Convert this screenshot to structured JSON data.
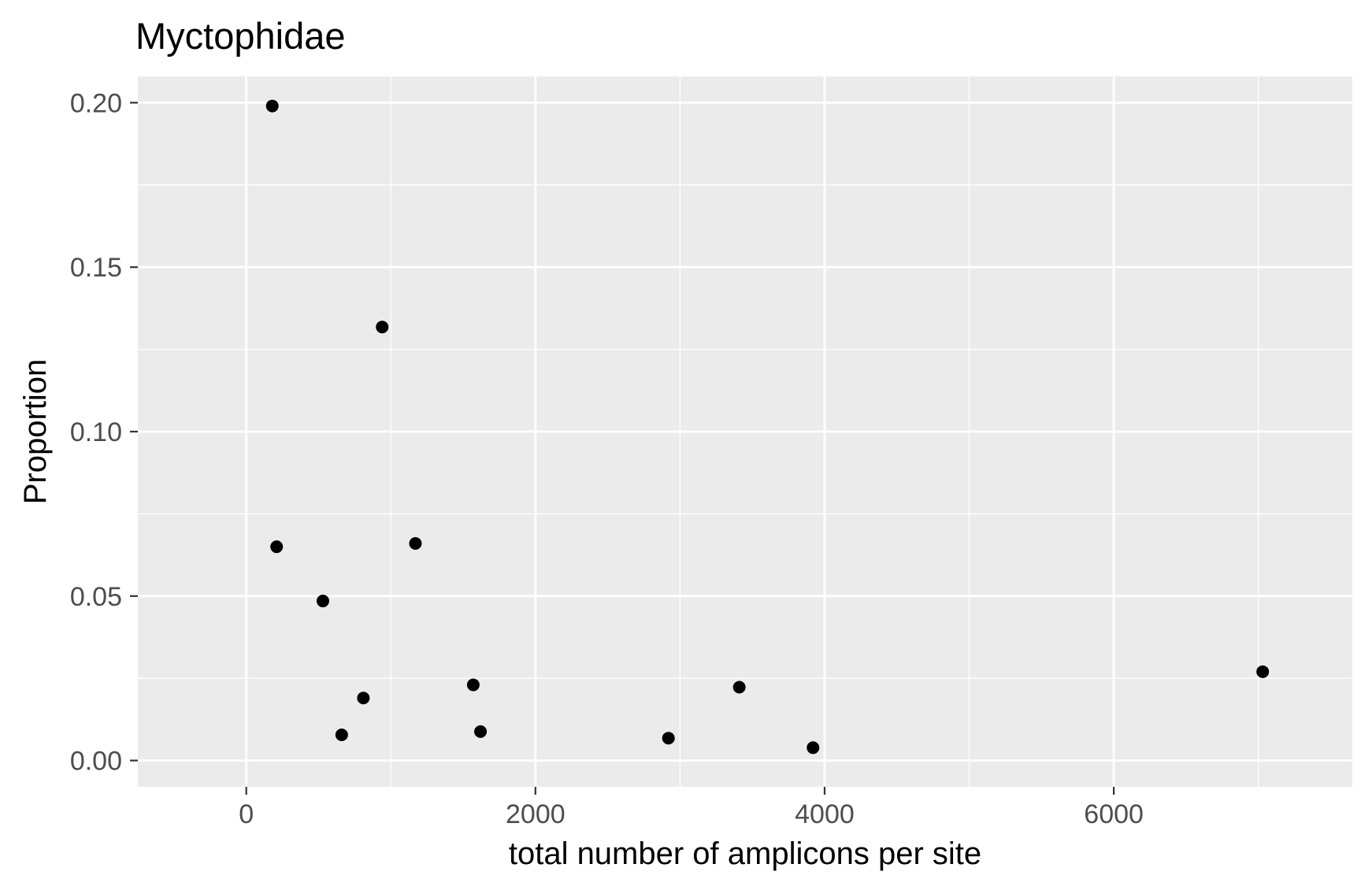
{
  "chart_data": {
    "type": "scatter",
    "title": "Myctophidae",
    "xlabel": "total number of amplicons per site",
    "ylabel": "Proportion",
    "xlim": [
      -750,
      7650
    ],
    "ylim": [
      -0.008,
      0.208
    ],
    "x_ticks": [
      0,
      2000,
      4000,
      6000
    ],
    "x_tick_labels": [
      "0",
      "2000",
      "4000",
      "6000"
    ],
    "y_ticks": [
      0,
      0.05,
      0.1,
      0.15,
      0.2
    ],
    "y_tick_labels": [
      "0.00",
      "0.05",
      "0.10",
      "0.15",
      "0.20"
    ],
    "grid": true,
    "legend": "none",
    "colors": {
      "panel_background": "#ebebeb",
      "grid": "#ffffff",
      "point": "#000000",
      "axis_text": "#4d4d4d",
      "tick": "#333333",
      "title": "#000000"
    },
    "points": [
      {
        "x": 180,
        "y": 0.199
      },
      {
        "x": 210,
        "y": 0.065
      },
      {
        "x": 530,
        "y": 0.0485
      },
      {
        "x": 660,
        "y": 0.0078
      },
      {
        "x": 810,
        "y": 0.019
      },
      {
        "x": 940,
        "y": 0.1318
      },
      {
        "x": 1170,
        "y": 0.066
      },
      {
        "x": 1570,
        "y": 0.023
      },
      {
        "x": 1620,
        "y": 0.0088
      },
      {
        "x": 2920,
        "y": 0.0068
      },
      {
        "x": 3410,
        "y": 0.0223
      },
      {
        "x": 3920,
        "y": 0.0039
      },
      {
        "x": 7030,
        "y": 0.027
      }
    ]
  }
}
